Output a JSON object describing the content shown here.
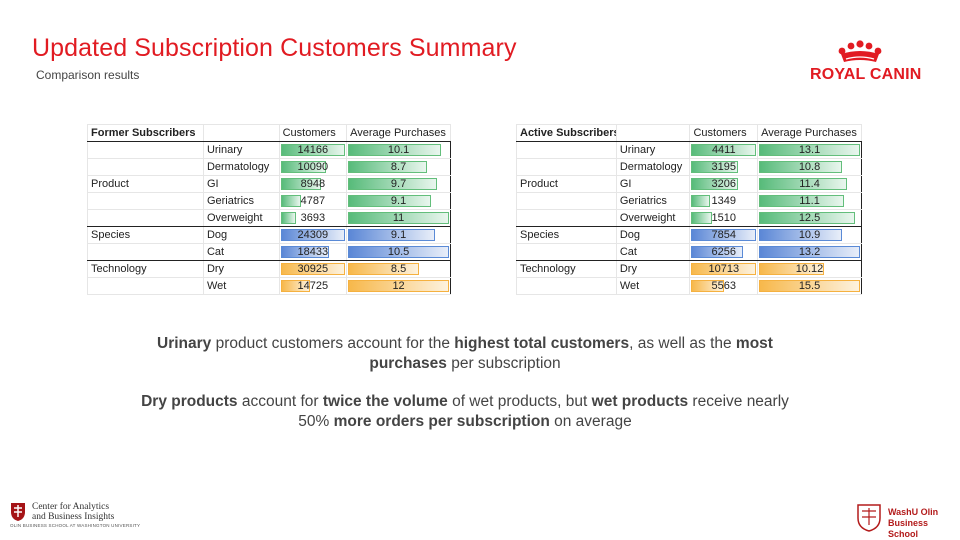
{
  "header": {
    "title": "Updated Subscription Customers Summary",
    "subtitle": "Comparison results"
  },
  "brand": {
    "logo_text": "ROYAL CANIN",
    "color": "#e11b22",
    "icon": "crown-icon"
  },
  "former": {
    "heading": "Former Subscribers",
    "col_customers": "Customers",
    "col_avg": "Average Purchases",
    "groups": [
      {
        "name": "Product",
        "color": "green",
        "rows": [
          {
            "label": "Urinary",
            "customers": "14166",
            "avg": "10.1"
          },
          {
            "label": "Dermatology",
            "customers": "10090",
            "avg": "8.7"
          },
          {
            "label": "GI",
            "customers": "8948",
            "avg": "9.7"
          },
          {
            "label": "Geriatrics",
            "customers": "4787",
            "avg": "9.1"
          },
          {
            "label": "Overweight",
            "customers": "3693",
            "avg": "11"
          }
        ]
      },
      {
        "name": "Species",
        "color": "blue",
        "rows": [
          {
            "label": "Dog",
            "customers": "24309",
            "avg": "9.1"
          },
          {
            "label": "Cat",
            "customers": "18433",
            "avg": "10.5"
          }
        ]
      },
      {
        "name": "Technology",
        "color": "orange",
        "rows": [
          {
            "label": "Dry",
            "customers": "30925",
            "avg": "8.5"
          },
          {
            "label": "Wet",
            "customers": "14725",
            "avg": "12"
          }
        ]
      }
    ]
  },
  "active": {
    "heading": "Active Subscribers",
    "col_customers": "Customers",
    "col_avg": "Average Purchases",
    "groups": [
      {
        "name": "Product",
        "color": "green",
        "rows": [
          {
            "label": "Urinary",
            "customers": "4411",
            "avg": "13.1"
          },
          {
            "label": "Dermatology",
            "customers": "3195",
            "avg": "10.8"
          },
          {
            "label": "GI",
            "customers": "3206",
            "avg": "11.4"
          },
          {
            "label": "Geriatrics",
            "customers": "1349",
            "avg": "11.1"
          },
          {
            "label": "Overweight",
            "customers": "1510",
            "avg": "12.5"
          }
        ]
      },
      {
        "name": "Species",
        "color": "blue",
        "rows": [
          {
            "label": "Dog",
            "customers": "7854",
            "avg": "10.9"
          },
          {
            "label": "Cat",
            "customers": "6256",
            "avg": "13.2"
          }
        ]
      },
      {
        "name": "Technology",
        "color": "orange",
        "rows": [
          {
            "label": "Dry",
            "customers": "10713",
            "avg": "10.12"
          },
          {
            "label": "Wet",
            "customers": "5563",
            "avg": "15.5"
          }
        ]
      }
    ]
  },
  "colors": {
    "green": [
      "#57bb7a",
      "#e9f6ee",
      "#63be7b"
    ],
    "blue": [
      "#5b87d6",
      "#e8eef9",
      "#5a8ad6"
    ],
    "orange": [
      "#f7b84b",
      "#fdf2de",
      "#f5b140"
    ]
  },
  "insights": {
    "p1": [
      {
        "t": "Urinary",
        "b": true
      },
      {
        "t": " product customers account for the ",
        "b": false
      },
      {
        "t": "highest total customers",
        "b": true
      },
      {
        "t": ", as well as the ",
        "b": false
      },
      {
        "t": "most purchases",
        "b": true
      },
      {
        "t": " per subscription",
        "b": false
      }
    ],
    "p2": [
      {
        "t": "Dry products",
        "b": true
      },
      {
        "t": " account for ",
        "b": false
      },
      {
        "t": "twice the volume",
        "b": true
      },
      {
        "t": " of wet products, but ",
        "b": false
      },
      {
        "t": "wet products",
        "b": true
      },
      {
        "t": " receive nearly 50% ",
        "b": false
      },
      {
        "t": "more orders per subscription",
        "b": true
      },
      {
        "t": " on average",
        "b": false
      }
    ]
  },
  "footer": {
    "left_line1": "Center for Analytics",
    "left_line2": "and Business Insights",
    "left_small": "OLIN BUSINESS SCHOOL AT WASHINGTON UNIVERSITY",
    "right_line1": "WashU Olin",
    "right_line2": "Business School"
  }
}
